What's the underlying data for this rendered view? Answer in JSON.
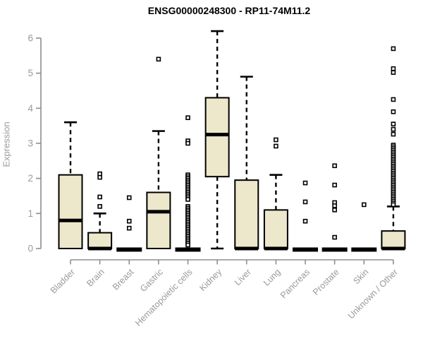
{
  "colors": {
    "background": "#ffffff",
    "box_fill": "#ede8cb",
    "box_stroke": "#000000",
    "median": "#000000",
    "whisker": "#000000",
    "outlier_fill": "#ffffff",
    "outlier_stroke": "#000000",
    "axis_line": "#8e8e8e",
    "tick_label": "#9a9a9a",
    "title": "#000000"
  },
  "chart_data": {
    "type": "boxplot",
    "title": "ENSG00000248300 - RP11-74M11.2",
    "xlabel": "",
    "ylabel": "Expression",
    "ylim": [
      0,
      6
    ],
    "y_ticks": [
      0,
      1,
      2,
      3,
      4,
      5,
      6
    ],
    "grid": false,
    "legend": "none",
    "categories": [
      "Bladder",
      "Brain",
      "Breast",
      "Gastric",
      "Hematopoietic cells",
      "Kidney",
      "Liver",
      "Lung",
      "Pancreas",
      "Prostate",
      "Skin",
      "Unknown / Other"
    ],
    "boxes": [
      {
        "category": "Bladder",
        "slug": "bladder",
        "whisker_low": 0,
        "q1": 0,
        "median": 0.8,
        "q3": 2.1,
        "whisker_high": 3.6,
        "outliers": []
      },
      {
        "category": "Brain",
        "slug": "brain",
        "whisker_low": 0,
        "q1": 0,
        "median": 0,
        "q3": 0.45,
        "whisker_high": 1.0,
        "outliers": [
          2.13,
          2.03,
          1.47,
          1.2
        ]
      },
      {
        "category": "Breast",
        "slug": "breast",
        "whisker_low": 0,
        "q1": 0,
        "median": 0,
        "q3": 0,
        "whisker_high": 0,
        "outliers": [
          1.45,
          0.78,
          0.58
        ]
      },
      {
        "category": "Gastric",
        "slug": "gastric",
        "whisker_low": 0,
        "q1": 0,
        "median": 1.05,
        "q3": 1.6,
        "whisker_high": 3.35,
        "outliers": [
          5.4
        ]
      },
      {
        "category": "Hematopoietic cells",
        "slug": "hematopoietic-cells",
        "whisker_low": 0,
        "q1": 0,
        "median": 0,
        "q3": 0,
        "whisker_high": 0,
        "outliers": [
          3.73,
          3.07,
          3.0,
          2.1,
          2.05,
          2.0,
          1.95,
          1.9,
          1.85,
          1.8,
          1.75,
          1.7,
          1.65,
          1.6,
          1.55,
          1.5,
          1.45,
          1.4,
          1.2,
          1.15,
          1.1,
          1.05,
          1.0,
          0.95,
          0.9,
          0.85,
          0.8,
          0.75,
          0.7,
          0.65,
          0.6,
          0.55,
          0.5,
          0.45,
          0.4,
          0.35,
          0.3,
          0.25,
          0.2,
          0.15,
          0.1
        ]
      },
      {
        "category": "Kidney",
        "slug": "kidney",
        "whisker_low": 0,
        "q1": 2.05,
        "median": 3.25,
        "q3": 4.3,
        "whisker_high": 6.2,
        "outliers": []
      },
      {
        "category": "Liver",
        "slug": "liver",
        "whisker_low": 0,
        "q1": 0,
        "median": 0,
        "q3": 1.95,
        "whisker_high": 4.9,
        "outliers": []
      },
      {
        "category": "Lung",
        "slug": "lung",
        "whisker_low": 0,
        "q1": 0,
        "median": 0,
        "q3": 1.1,
        "whisker_high": 2.1,
        "outliers": [
          3.1,
          2.92
        ]
      },
      {
        "category": "Pancreas",
        "slug": "pancreas",
        "whisker_low": 0,
        "q1": 0,
        "median": 0,
        "q3": 0,
        "whisker_high": 0,
        "outliers": [
          1.87,
          1.33,
          0.78
        ]
      },
      {
        "category": "Prostate",
        "slug": "prostate",
        "whisker_low": 0,
        "q1": 0,
        "median": 0,
        "q3": 0,
        "whisker_high": 0,
        "outliers": [
          2.36,
          1.81,
          1.31,
          1.22,
          1.1,
          0.32
        ]
      },
      {
        "category": "Skin",
        "slug": "skin",
        "whisker_low": 0,
        "q1": 0,
        "median": 0,
        "q3": 0,
        "whisker_high": 0,
        "outliers": [
          1.25
        ]
      },
      {
        "category": "Unknown / Other",
        "slug": "unknown-other",
        "whisker_low": 0,
        "q1": 0,
        "median": 0,
        "q3": 0.5,
        "whisker_high": 1.2,
        "outliers": [
          5.7,
          5.13,
          5.02,
          4.25,
          3.9,
          3.55,
          3.4,
          3.26,
          2.95,
          2.9,
          2.85,
          2.8,
          2.75,
          2.7,
          2.65,
          2.6,
          2.55,
          2.5,
          2.45,
          2.4,
          2.35,
          2.3,
          2.25,
          2.2,
          2.15,
          2.1,
          2.05,
          2.0,
          1.95,
          1.9,
          1.85,
          1.8,
          1.75,
          1.7,
          1.65,
          1.6,
          1.55,
          1.5,
          1.45,
          1.4,
          1.35,
          1.3,
          1.25
        ]
      }
    ]
  }
}
